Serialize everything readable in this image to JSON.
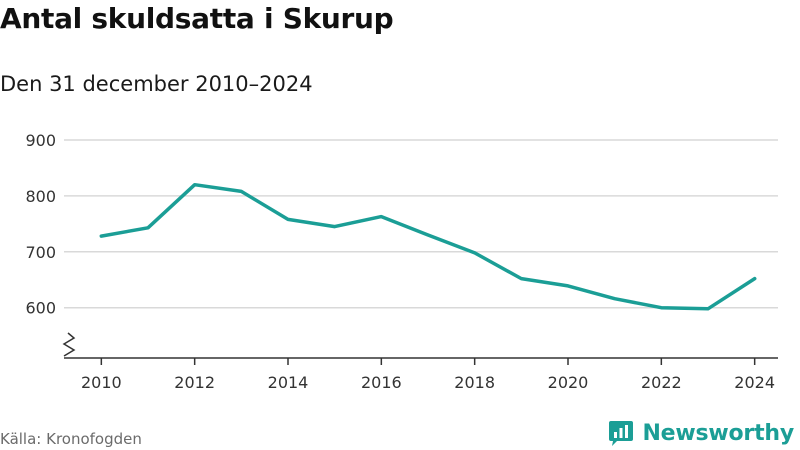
{
  "header": {
    "title": "Antal skuldsatta i Skurup",
    "subtitle": "Den 31 december 2010–2024"
  },
  "footer": {
    "source": "Källa: Kronofogden",
    "brand": "Newsworthy",
    "brand_icon": "bar-chart-bubble-icon"
  },
  "colors": {
    "line": "#1b9e96",
    "grid": "#d9d9d9",
    "axis": "#333333",
    "brand": "#1b9e96"
  },
  "chart_data": {
    "type": "line",
    "title": "Antal skuldsatta i Skurup",
    "subtitle": "Den 31 december 2010–2024",
    "x": [
      2010,
      2011,
      2012,
      2013,
      2014,
      2015,
      2016,
      2017,
      2018,
      2019,
      2020,
      2021,
      2022,
      2023,
      2024
    ],
    "series": [
      {
        "values": [
          728,
          743,
          820,
          808,
          758,
          745,
          763,
          730,
          698,
          652,
          639,
          616,
          600,
          598,
          652
        ]
      }
    ],
    "x_ticks": [
      2010,
      2012,
      2014,
      2016,
      2018,
      2020,
      2022,
      2024
    ],
    "y_ticks": [
      600,
      700,
      800,
      900
    ],
    "xlim": [
      2009.5,
      2024.5
    ],
    "ylim": [
      510,
      900
    ],
    "y_axis_break": true,
    "grid": "horizontal",
    "legend": "none"
  }
}
